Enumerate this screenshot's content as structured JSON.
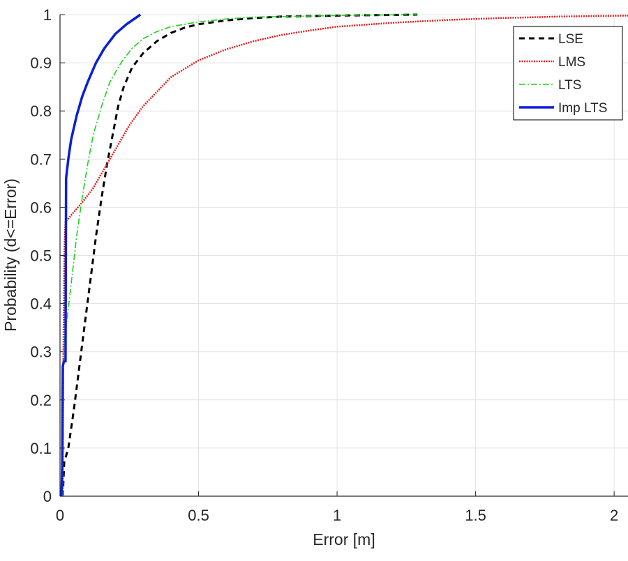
{
  "chart_data": {
    "type": "line",
    "title": "",
    "xlabel": "Error [m]",
    "ylabel": "Probability (d<=Error)",
    "xlim": [
      0,
      2.05
    ],
    "ylim": [
      0,
      1
    ],
    "x_ticks": [
      0,
      0.5,
      1,
      1.5,
      2
    ],
    "x_tick_labels": [
      "0",
      "0.5",
      "1",
      "1.5",
      "2"
    ],
    "y_ticks": [
      0,
      0.1,
      0.2,
      0.3,
      0.4,
      0.5,
      0.6,
      0.7,
      0.8,
      0.9,
      1
    ],
    "y_tick_labels": [
      "0",
      "0.1",
      "0.2",
      "0.3",
      "0.4",
      "0.5",
      "0.6",
      "0.7",
      "0.8",
      "0.9",
      "1"
    ],
    "grid": true,
    "legend_position": "top-right",
    "series": [
      {
        "name": "LSE",
        "color": "#000000",
        "line_style": "dashed",
        "points": [
          [
            0.01,
            0.0
          ],
          [
            0.015,
            0.07
          ],
          [
            0.03,
            0.1
          ],
          [
            0.05,
            0.18
          ],
          [
            0.07,
            0.27
          ],
          [
            0.09,
            0.36
          ],
          [
            0.11,
            0.45
          ],
          [
            0.13,
            0.54
          ],
          [
            0.15,
            0.62
          ],
          [
            0.17,
            0.69
          ],
          [
            0.19,
            0.75
          ],
          [
            0.21,
            0.81
          ],
          [
            0.23,
            0.85
          ],
          [
            0.26,
            0.89
          ],
          [
            0.3,
            0.92
          ],
          [
            0.35,
            0.945
          ],
          [
            0.4,
            0.962
          ],
          [
            0.45,
            0.973
          ],
          [
            0.5,
            0.98
          ],
          [
            0.6,
            0.988
          ],
          [
            0.7,
            0.993
          ],
          [
            0.8,
            0.996
          ],
          [
            1.0,
            0.998
          ],
          [
            1.29,
            1.0
          ]
        ]
      },
      {
        "name": "LMS",
        "color": "#e41a1c",
        "line_style": "dotted",
        "points": [
          [
            0.01,
            0.0
          ],
          [
            0.012,
            0.3
          ],
          [
            0.016,
            0.52
          ],
          [
            0.02,
            0.57
          ],
          [
            0.05,
            0.59
          ],
          [
            0.08,
            0.61
          ],
          [
            0.12,
            0.64
          ],
          [
            0.16,
            0.68
          ],
          [
            0.2,
            0.72
          ],
          [
            0.25,
            0.77
          ],
          [
            0.3,
            0.81
          ],
          [
            0.35,
            0.84
          ],
          [
            0.4,
            0.87
          ],
          [
            0.5,
            0.905
          ],
          [
            0.6,
            0.928
          ],
          [
            0.7,
            0.945
          ],
          [
            0.8,
            0.958
          ],
          [
            0.9,
            0.967
          ],
          [
            1.0,
            0.975
          ],
          [
            1.2,
            0.983
          ],
          [
            1.4,
            0.989
          ],
          [
            1.6,
            0.993
          ],
          [
            1.8,
            0.996
          ],
          [
            2.05,
            0.998
          ]
        ]
      },
      {
        "name": "LTS",
        "color": "#1fd11f",
        "line_style": "dashdot",
        "points": [
          [
            0.01,
            0.0
          ],
          [
            0.012,
            0.3
          ],
          [
            0.02,
            0.34
          ],
          [
            0.04,
            0.44
          ],
          [
            0.06,
            0.54
          ],
          [
            0.08,
            0.62
          ],
          [
            0.1,
            0.69
          ],
          [
            0.12,
            0.75
          ],
          [
            0.15,
            0.81
          ],
          [
            0.18,
            0.86
          ],
          [
            0.22,
            0.9
          ],
          [
            0.26,
            0.93
          ],
          [
            0.3,
            0.95
          ],
          [
            0.35,
            0.965
          ],
          [
            0.4,
            0.975
          ],
          [
            0.5,
            0.985
          ],
          [
            0.6,
            0.991
          ],
          [
            0.7,
            0.995
          ],
          [
            0.9,
            0.997
          ],
          [
            1.1,
            0.999
          ],
          [
            1.29,
            1.0
          ]
        ]
      },
      {
        "name": "Imp LTS",
        "color": "#0a1fd6",
        "line_style": "solid",
        "points": [
          [
            0.005,
            0.0
          ],
          [
            0.008,
            0.06
          ],
          [
            0.01,
            0.27
          ],
          [
            0.014,
            0.28
          ],
          [
            0.02,
            0.28
          ],
          [
            0.022,
            0.66
          ],
          [
            0.03,
            0.7
          ],
          [
            0.04,
            0.74
          ],
          [
            0.06,
            0.79
          ],
          [
            0.08,
            0.83
          ],
          [
            0.1,
            0.86
          ],
          [
            0.13,
            0.9
          ],
          [
            0.16,
            0.93
          ],
          [
            0.2,
            0.96
          ],
          [
            0.24,
            0.98
          ],
          [
            0.29,
            1.0
          ]
        ]
      }
    ]
  }
}
